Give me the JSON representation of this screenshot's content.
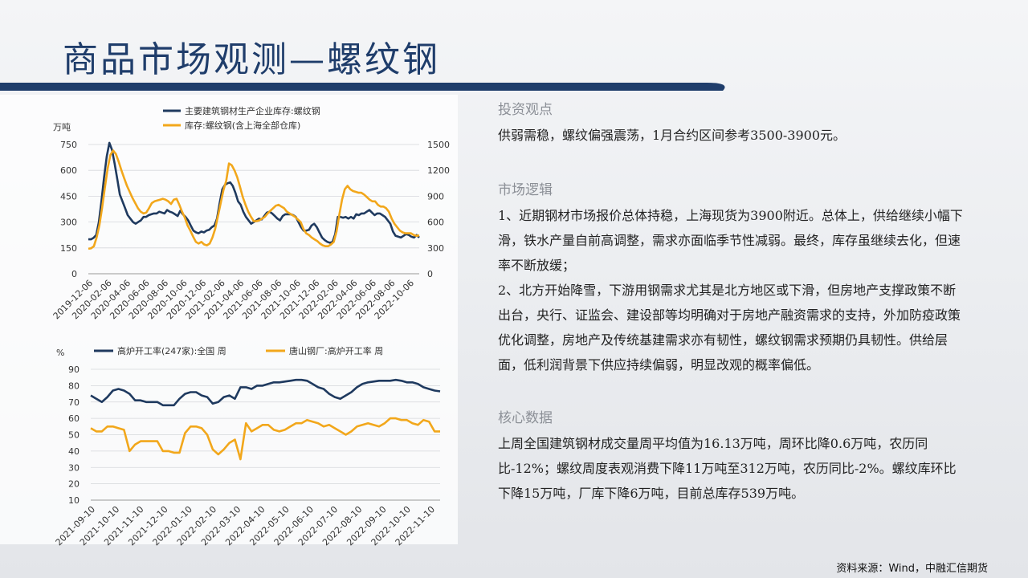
{
  "page": {
    "title": "商品市场观测—螺纹钢",
    "source": "资料来源：Wind，中融汇信期货"
  },
  "charts": [
    {
      "type": "line",
      "legend": [
        "主要建筑钢材生产企业库存:螺纹钢",
        "库存:螺纹钢(含上海全部仓库)"
      ],
      "unit_left": "万吨",
      "y_left": {
        "ylim": [
          0,
          750
        ],
        "ticks": [
          "0",
          "150",
          "300",
          "450",
          "600",
          "750"
        ]
      },
      "y_right": {
        "ylim": [
          0,
          1500
        ],
        "ticks": [
          "0",
          "300",
          "600",
          "900",
          "1200",
          "1500"
        ]
      },
      "x_ticks": [
        "2019-12-06",
        "2020-02-06",
        "2020-04-06",
        "2020-06-06",
        "2020-08-06",
        "2020-10-06",
        "2020-12-06",
        "2021-02-06",
        "2021-04-06",
        "2021-06-06",
        "2021-08-06",
        "2021-10-06",
        "2021-12-06",
        "2022-02-06",
        "2022-04-06",
        "2022-06-06",
        "2022-08-06",
        "2022-10-06"
      ],
      "series": [
        {
          "name": "主要建筑钢材生产企业库存:螺纹钢",
          "axis": "left",
          "color": "#1f3a5f",
          "values": [
            200,
            200,
            208,
            225,
            300,
            420,
            560,
            680,
            760,
            720,
            640,
            550,
            460,
            420,
            380,
            340,
            320,
            300,
            290,
            300,
            310,
            330,
            330,
            340,
            345,
            350,
            350,
            360,
            355,
            350,
            370,
            360,
            355,
            345,
            335,
            365,
            345,
            330,
            310,
            280,
            250,
            240,
            235,
            245,
            240,
            250,
            255,
            270,
            280,
            320,
            410,
            490,
            515,
            525,
            530,
            510,
            470,
            420,
            400,
            360,
            330,
            310,
            290,
            300,
            310,
            320,
            315,
            335,
            355,
            360,
            350,
            335,
            320,
            310,
            335,
            345,
            345,
            345,
            340,
            330,
            300,
            270,
            250,
            250,
            255,
            280,
            290,
            270,
            240,
            210,
            195,
            185,
            180,
            185,
            230,
            330,
            330,
            325,
            330,
            320,
            330,
            320,
            345,
            340,
            350,
            350,
            360,
            370,
            355,
            340,
            350,
            350,
            340,
            330,
            310,
            290,
            245,
            220,
            215,
            210,
            220,
            230,
            225,
            215,
            210,
            225,
            210
          ]
        },
        {
          "name": "库存:螺纹钢(含上海全部仓库)",
          "axis": "right",
          "color": "#f2a71b",
          "values": [
            290,
            295,
            320,
            420,
            560,
            770,
            1000,
            1220,
            1380,
            1430,
            1390,
            1300,
            1200,
            1110,
            1020,
            950,
            880,
            820,
            760,
            720,
            700,
            710,
            760,
            820,
            840,
            850,
            860,
            870,
            860,
            840,
            810,
            860,
            870,
            800,
            720,
            650,
            560,
            500,
            430,
            370,
            350,
            370,
            340,
            330,
            350,
            420,
            520,
            670,
            820,
            970,
            1080,
            1280,
            1260,
            1200,
            1120,
            1010,
            890,
            800,
            720,
            660,
            610,
            610,
            620,
            640,
            660,
            700,
            730,
            760,
            790,
            800,
            780,
            760,
            720,
            700,
            680,
            660,
            630,
            600,
            520,
            470,
            450,
            420,
            400,
            380,
            350,
            330,
            320,
            320,
            340,
            370,
            490,
            680,
            860,
            980,
            1020,
            980,
            960,
            950,
            940,
            940,
            920,
            890,
            860,
            840,
            840,
            800,
            780,
            780,
            760,
            720,
            640,
            580,
            540,
            500,
            480,
            470,
            470,
            470,
            450,
            440,
            445
          ]
        }
      ]
    },
    {
      "type": "line",
      "legend": [
        "高炉开工率(247家):全国 周",
        "唐山钢厂:高炉开工率 周"
      ],
      "unit_left": "%",
      "y_left": {
        "ylim": [
          10,
          90
        ],
        "ticks": [
          "10",
          "20",
          "30",
          "40",
          "50",
          "60",
          "70",
          "80",
          "90"
        ]
      },
      "x_ticks": [
        "2021-09-10",
        "2021-10-10",
        "2021-11-10",
        "2021-12-10",
        "2022-01-10",
        "2022-02-10",
        "2022-03-10",
        "2022-04-10",
        "2022-05-10",
        "2022-06-10",
        "2022-07-10",
        "2022-08-10",
        "2022-09-10",
        "2022-10-10",
        "2022-11-10"
      ],
      "series": [
        {
          "name": "高炉开工率(247家):全国 周",
          "color": "#1f3a5f",
          "values": [
            74,
            72,
            70,
            73,
            77,
            78,
            77,
            75,
            71,
            71,
            70,
            70,
            70,
            68,
            68,
            68,
            72,
            75,
            76,
            76,
            74,
            73,
            69,
            70,
            73,
            74,
            72,
            79,
            79,
            78,
            80,
            80,
            81,
            82,
            82,
            82.5,
            83,
            83.5,
            83.5,
            83,
            81,
            79,
            78,
            75,
            73,
            72,
            74,
            76,
            79,
            81,
            82,
            82.5,
            83,
            83,
            83,
            83.5,
            83,
            82,
            82,
            81,
            79,
            78,
            77,
            76.5
          ]
        },
        {
          "name": "唐山钢厂:高炉开工率 周",
          "color": "#f2a71b",
          "values": [
            54,
            52,
            52,
            55,
            55,
            54,
            53,
            40,
            44,
            46,
            46,
            46,
            46,
            40,
            40,
            39,
            39,
            51,
            55,
            55,
            54,
            50,
            41,
            38,
            41,
            45,
            47,
            35,
            57,
            52,
            54,
            56,
            56,
            53,
            52,
            53,
            55,
            57,
            57,
            59,
            58,
            57,
            55,
            56,
            54,
            52,
            50,
            52,
            55,
            56,
            57,
            56,
            55,
            57,
            60,
            60,
            59,
            59,
            57,
            56,
            59,
            58,
            52,
            52
          ]
        }
      ]
    }
  ],
  "right": {
    "s1_title": "投资观点",
    "s1_text": "供弱需稳，螺纹偏强震荡，1月合约区间参考3500-3900元。",
    "s2_title": "市场逻辑",
    "s2_p1": "1、近期钢材市场报价总体持稳，上海现货为3900附近。总体上，供给继续小幅下滑，铁水产量自前高调整，需求亦面临季节性减弱。最终，库存虽继续去化，但速率不断放缓；",
    "s2_p2": "2、北方开始降雪，下游用钢需求尤其是北方地区或下滑，但房地产支撑政策不断出台，央行、证监会、建设部等均明确对于房地产融资需求的支持，外加防疫政策优化调整，房地产及传统基建需求亦有韧性，螺纹钢需求预期仍具韧性。供给层面，低利润背景下供应持续偏弱，明显改观的概率偏低。",
    "s3_title": "核心数据",
    "s3_text": "上周全国建筑钢材成交量周平均值为16.13万吨，周环比降0.6万吨，农历同比-12%；螺纹周度表观消费下降11万吨至312万吨，农历同比-2%。螺纹库环比下降15万吨，厂库下降6万吨，目前总库存539万吨。"
  }
}
